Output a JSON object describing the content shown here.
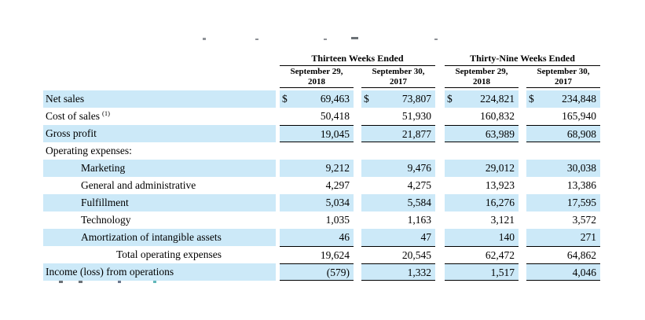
{
  "colors": {
    "row_highlight": "#cce9f8",
    "rule": "#000000",
    "text": "#000000"
  },
  "table": {
    "currency_symbol": "$",
    "col_groups": [
      {
        "label": "Thirteen Weeks Ended"
      },
      {
        "label": "Thirty-Nine Weeks Ended"
      }
    ],
    "col_headers": [
      {
        "line1": "September 29,",
        "line2": "2018"
      },
      {
        "line1": "September 30,",
        "line2": "2017"
      },
      {
        "line1": "September 29,",
        "line2": "2018"
      },
      {
        "line1": "September 30,",
        "line2": "2017"
      }
    ],
    "rows": [
      {
        "label": "Net sales",
        "indent": 0,
        "shaded": true,
        "dollar": true,
        "values": [
          "69,463",
          "73,807",
          "224,821",
          "234,848"
        ]
      },
      {
        "label": "Cost of sales",
        "sup": "(1)",
        "indent": 0,
        "shaded": false,
        "values": [
          "50,418",
          "51,930",
          "160,832",
          "165,940"
        ]
      },
      {
        "label": "Gross profit",
        "indent": 0,
        "shaded": true,
        "rule_top": true,
        "rule_bottom": true,
        "values": [
          "19,045",
          "21,877",
          "63,989",
          "68,908"
        ]
      },
      {
        "label": "Operating expenses:",
        "indent": 0,
        "shaded": false,
        "values": [
          "",
          "",
          "",
          ""
        ]
      },
      {
        "label": "Marketing",
        "indent": 1,
        "shaded": true,
        "values": [
          "9,212",
          "9,476",
          "29,012",
          "30,038"
        ]
      },
      {
        "label": "General and administrative",
        "indent": 1,
        "shaded": false,
        "values": [
          "4,297",
          "4,275",
          "13,923",
          "13,386"
        ]
      },
      {
        "label": "Fulfillment",
        "indent": 1,
        "shaded": true,
        "values": [
          "5,034",
          "5,584",
          "16,276",
          "17,595"
        ]
      },
      {
        "label": "Technology",
        "indent": 1,
        "shaded": false,
        "values": [
          "1,035",
          "1,163",
          "3,121",
          "3,572"
        ]
      },
      {
        "label": "Amortization of intangible assets",
        "indent": 1,
        "shaded": true,
        "values": [
          "46",
          "47",
          "140",
          "271"
        ]
      },
      {
        "label": "Total operating expenses",
        "indent": 2,
        "shaded": false,
        "rule_top": true,
        "values": [
          "19,624",
          "20,545",
          "62,472",
          "64,862"
        ]
      },
      {
        "label": "Income (loss) from operations",
        "indent": 0,
        "shaded": true,
        "rule_top": true,
        "rule_bottom": true,
        "values": [
          "(579)",
          "1,332",
          "1,517",
          "4,046"
        ]
      }
    ]
  }
}
